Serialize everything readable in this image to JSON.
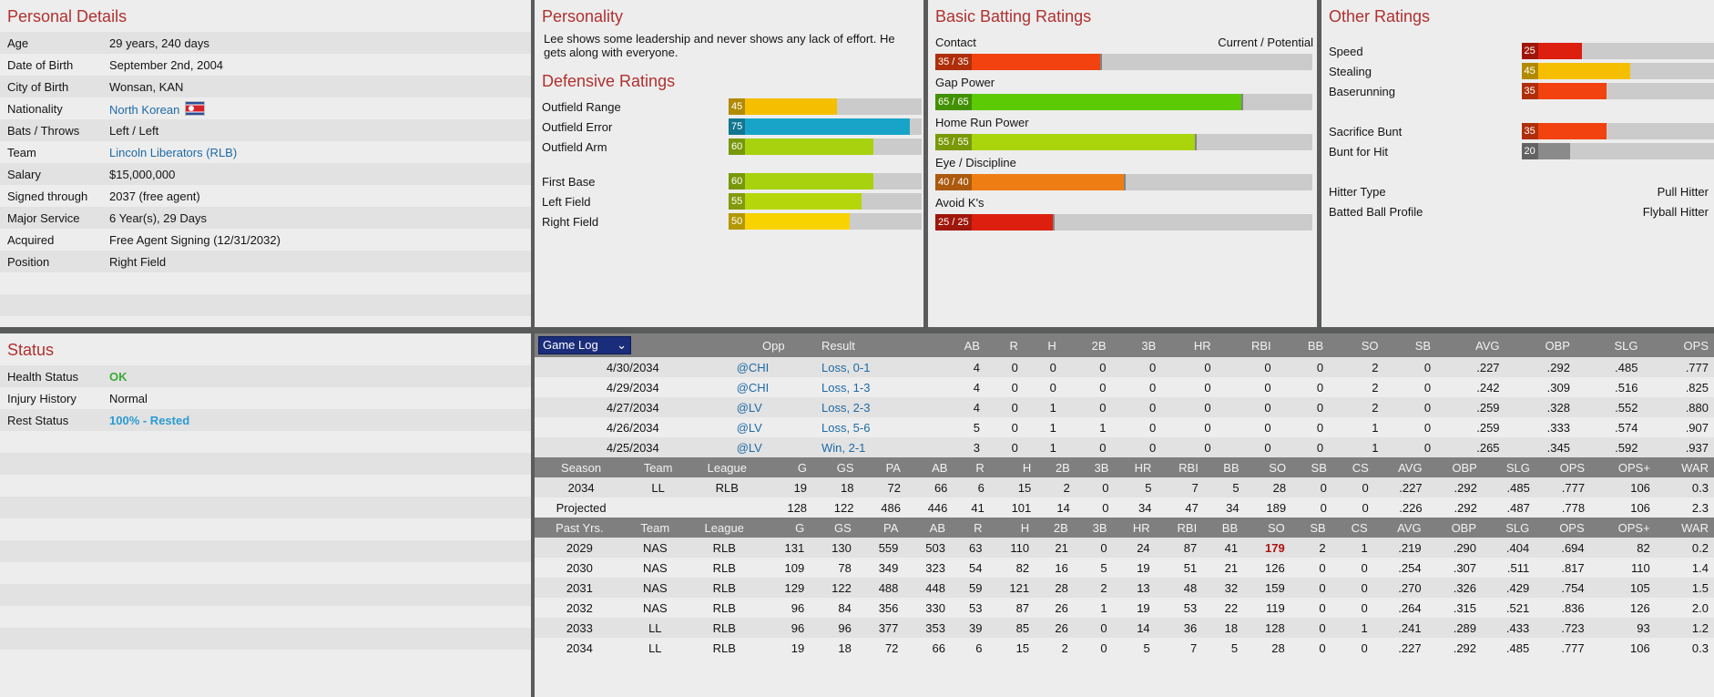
{
  "personal": {
    "title": "Personal Details",
    "rows": [
      {
        "label": "Age",
        "value": "29 years, 240 days"
      },
      {
        "label": "Date of Birth",
        "value": "September 2nd, 2004"
      },
      {
        "label": "City of Birth",
        "value": "Wonsan, KAN"
      },
      {
        "label": "Nationality",
        "value": "North Korean",
        "link": true,
        "flag": "north-korea-flag-icon"
      },
      {
        "label": "Bats / Throws",
        "value": "Left / Left"
      },
      {
        "label": "Team",
        "value": "Lincoln Liberators (RLB)",
        "link": true
      },
      {
        "label": "Salary",
        "value": "$15,000,000"
      },
      {
        "label": "Signed through",
        "value": "2037 (free agent)"
      },
      {
        "label": "Major Service",
        "value": "6 Year(s), 29 Days"
      },
      {
        "label": "Acquired",
        "value": "Free Agent Signing (12/31/2032)"
      },
      {
        "label": "Position",
        "value": "Right Field"
      }
    ]
  },
  "status": {
    "title": "Status",
    "rows": [
      {
        "label": "Health Status",
        "value": "OK",
        "color": "#3aaa35"
      },
      {
        "label": "Injury History",
        "value": "Normal"
      },
      {
        "label": "Rest Status",
        "value": "100% - Rested",
        "color": "#2a9bd0"
      }
    ]
  },
  "personality": {
    "title": "Personality",
    "text": "Lee shows some leadership and never shows any lack of effort. He gets along with everyone."
  },
  "defensive": {
    "title": "Defensive Ratings",
    "groups": [
      [
        {
          "label": "Outfield Range",
          "value": 45,
          "text": "45",
          "color": "#f5bf00"
        },
        {
          "label": "Outfield Error",
          "value": 75,
          "text": "75",
          "color": "#18a4c8"
        },
        {
          "label": "Outfield Arm",
          "value": 60,
          "text": "60",
          "color": "#a8d20e"
        }
      ],
      [
        {
          "label": "First Base",
          "value": 60,
          "text": "60",
          "color": "#a8d20e"
        },
        {
          "label": "Left Field",
          "value": 55,
          "text": "55",
          "color": "#b6d60c"
        },
        {
          "label": "Right Field",
          "value": 50,
          "text": "50",
          "color": "#f8d300"
        }
      ]
    ]
  },
  "batting": {
    "title": "Basic Batting Ratings",
    "header_right": "Current / Potential",
    "rows": [
      {
        "label": "Contact",
        "current": 35,
        "potential": 35,
        "text": "35 / 35",
        "color": "#f2420f"
      },
      {
        "label": "Gap Power",
        "current": 65,
        "potential": 65,
        "text": "65 / 65",
        "color": "#5cca05"
      },
      {
        "label": "Home Run Power",
        "current": 55,
        "potential": 55,
        "text": "55 / 55",
        "color": "#aad40c"
      },
      {
        "label": "Eye / Discipline",
        "current": 40,
        "potential": 40,
        "text": "40 / 40",
        "color": "#ee7d14"
      },
      {
        "label": "Avoid K's",
        "current": 25,
        "potential": 25,
        "text": "25 / 25",
        "color": "#dd1f10"
      }
    ]
  },
  "other": {
    "title": "Other Ratings",
    "groups": [
      [
        {
          "label": "Speed",
          "value": 25,
          "text": "25",
          "color": "#dd1f10"
        },
        {
          "label": "Stealing",
          "value": 45,
          "text": "45",
          "color": "#f5bf00"
        },
        {
          "label": "Baserunning",
          "value": 35,
          "text": "35",
          "color": "#f2420f"
        }
      ],
      [
        {
          "label": "Sacrifice Bunt",
          "value": 35,
          "text": "35",
          "color": "#f2420f"
        },
        {
          "label": "Bunt for Hit",
          "value": 20,
          "text": "20",
          "color": "#8a8a8a"
        }
      ]
    ],
    "text_rows": [
      {
        "label": "Hitter Type",
        "value": "Pull Hitter"
      },
      {
        "label": "Batted Ball Profile",
        "value": "Flyball Hitter"
      }
    ]
  },
  "gamelog": {
    "dropdown": "Game Log",
    "columns": [
      "Opp",
      "Result",
      "AB",
      "R",
      "H",
      "2B",
      "3B",
      "HR",
      "RBI",
      "BB",
      "SO",
      "SB",
      "AVG",
      "OBP",
      "SLG",
      "OPS"
    ],
    "rows": [
      [
        "4/30/2034",
        "@CHI",
        "Loss, 0-1",
        "4",
        "0",
        "0",
        "0",
        "0",
        "0",
        "0",
        "0",
        "2",
        "0",
        ".227",
        ".292",
        ".485",
        ".777"
      ],
      [
        "4/29/2034",
        "@CHI",
        "Loss, 1-3",
        "4",
        "0",
        "0",
        "0",
        "0",
        "0",
        "0",
        "0",
        "2",
        "0",
        ".242",
        ".309",
        ".516",
        ".825"
      ],
      [
        "4/27/2034",
        "@LV",
        "Loss, 2-3",
        "4",
        "0",
        "1",
        "0",
        "0",
        "0",
        "0",
        "0",
        "2",
        "0",
        ".259",
        ".328",
        ".552",
        ".880"
      ],
      [
        "4/26/2034",
        "@LV",
        "Loss, 5-6",
        "5",
        "0",
        "1",
        "1",
        "0",
        "0",
        "0",
        "0",
        "1",
        "0",
        ".259",
        ".333",
        ".574",
        ".907"
      ],
      [
        "4/25/2034",
        "@LV",
        "Win, 2-1",
        "3",
        "0",
        "1",
        "0",
        "0",
        "0",
        "0",
        "0",
        "1",
        "0",
        ".265",
        ".345",
        ".592",
        ".937"
      ]
    ]
  },
  "season": {
    "columns": [
      "Season",
      "Team",
      "League",
      "G",
      "GS",
      "PA",
      "AB",
      "R",
      "H",
      "2B",
      "3B",
      "HR",
      "RBI",
      "BB",
      "SO",
      "SB",
      "CS",
      "AVG",
      "OBP",
      "SLG",
      "OPS",
      "OPS+",
      "WAR"
    ],
    "rows": [
      [
        "2034",
        "LL",
        "RLB",
        "19",
        "18",
        "72",
        "66",
        "6",
        "15",
        "2",
        "0",
        "5",
        "7",
        "5",
        "28",
        "0",
        "0",
        ".227",
        ".292",
        ".485",
        ".777",
        "106",
        "0.3"
      ],
      [
        "Projected",
        "",
        "",
        "128",
        "122",
        "486",
        "446",
        "41",
        "101",
        "14",
        "0",
        "34",
        "47",
        "34",
        "189",
        "0",
        "0",
        ".226",
        ".292",
        ".487",
        ".778",
        "106",
        "2.3"
      ]
    ]
  },
  "past": {
    "columns": [
      "Past Yrs.",
      "Team",
      "League",
      "G",
      "GS",
      "PA",
      "AB",
      "R",
      "H",
      "2B",
      "3B",
      "HR",
      "RBI",
      "BB",
      "SO",
      "SB",
      "CS",
      "AVG",
      "OBP",
      "SLG",
      "OPS",
      "OPS+",
      "WAR"
    ],
    "highlight_color": "#b01010",
    "rows": [
      [
        "2029",
        "NAS",
        "RLB",
        "131",
        "130",
        "559",
        "503",
        "63",
        "110",
        "21",
        "0",
        "24",
        "87",
        "41",
        "179",
        "2",
        "1",
        ".219",
        ".290",
        ".404",
        ".694",
        "82",
        "0.2"
      ],
      [
        "2030",
        "NAS",
        "RLB",
        "109",
        "78",
        "349",
        "323",
        "54",
        "82",
        "16",
        "5",
        "19",
        "51",
        "21",
        "126",
        "0",
        "0",
        ".254",
        ".307",
        ".511",
        ".817",
        "110",
        "1.4"
      ],
      [
        "2031",
        "NAS",
        "RLB",
        "129",
        "122",
        "488",
        "448",
        "59",
        "121",
        "28",
        "2",
        "13",
        "48",
        "32",
        "159",
        "0",
        "0",
        ".270",
        ".326",
        ".429",
        ".754",
        "105",
        "1.5"
      ],
      [
        "2032",
        "NAS",
        "RLB",
        "96",
        "84",
        "356",
        "330",
        "53",
        "87",
        "26",
        "1",
        "19",
        "53",
        "22",
        "119",
        "0",
        "0",
        ".264",
        ".315",
        ".521",
        ".836",
        "126",
        "2.0"
      ],
      [
        "2033",
        "LL",
        "RLB",
        "96",
        "96",
        "377",
        "353",
        "39",
        "85",
        "26",
        "0",
        "14",
        "36",
        "18",
        "128",
        "0",
        "1",
        ".241",
        ".289",
        ".433",
        ".723",
        "93",
        "1.2"
      ],
      [
        "2034",
        "LL",
        "RLB",
        "19",
        "18",
        "72",
        "66",
        "6",
        "15",
        "2",
        "0",
        "5",
        "7",
        "5",
        "28",
        "0",
        "0",
        ".227",
        ".292",
        ".485",
        ".777",
        "106",
        "0.3"
      ]
    ]
  }
}
